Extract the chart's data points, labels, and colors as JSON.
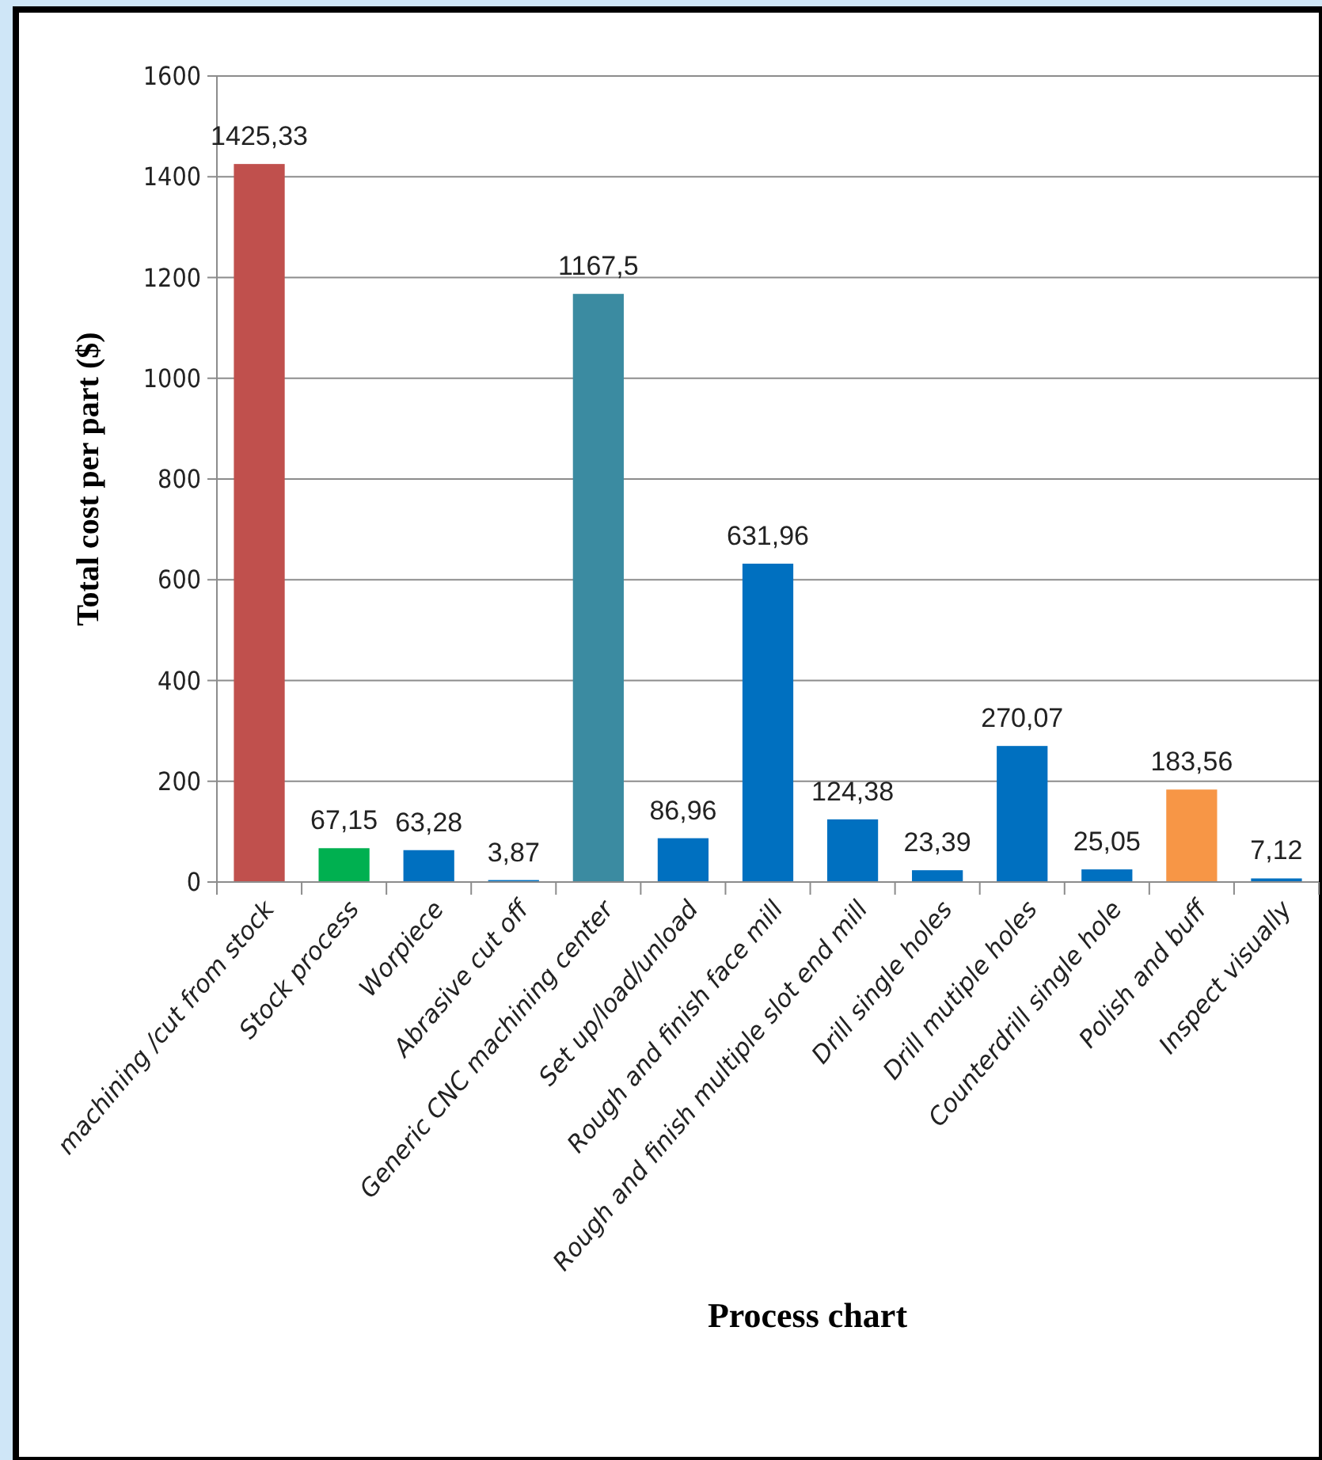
{
  "chart_data": {
    "type": "bar",
    "xlabel": "Process chart",
    "ylabel": "Total cost per part  ($)",
    "categories": [
      "machining /cut from stock",
      "Stock process",
      "Worpiece",
      "Abrasive cut off",
      "Generic CNC machining center",
      "Set up/load/unload",
      "Rough and finish face mill",
      "Rough and finish multiple slot end mill",
      "Drill single holes",
      "Drill mutiple holes",
      "Counterdrill single hole",
      "Polish and buff",
      "Inspect visually"
    ],
    "values": [
      1425.33,
      67.15,
      63.28,
      3.87,
      1167.5,
      86.96,
      631.96,
      124.38,
      23.39,
      270.07,
      25.05,
      183.56,
      7.12
    ],
    "colors": [
      "#c0504d",
      "#00b050",
      "#0070c0",
      "#0070c0",
      "#3b8ba1",
      "#0070c0",
      "#0070c0",
      "#0070c0",
      "#0070c0",
      "#0070c0",
      "#0070c0",
      "#f79646",
      "#0070c0"
    ],
    "value_labels": [
      "1425,33",
      "67,15",
      "63,28",
      "3,87",
      "1167,5",
      "86,96",
      "631,96",
      "124,38",
      "23,39",
      "270,07",
      "25,05",
      "183,56",
      "7,12"
    ],
    "ylim": [
      0,
      1600
    ],
    "yticks": [
      0,
      200,
      400,
      600,
      800,
      1000,
      1200,
      1400,
      1600
    ],
    "grid": "y"
  }
}
